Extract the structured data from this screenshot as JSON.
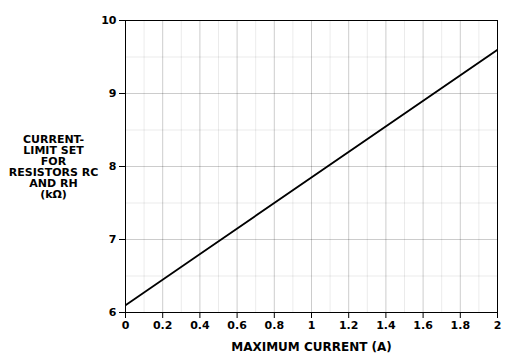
{
  "chart_data": {
    "type": "line",
    "xlabel": "MAXIMUM CURRENT (A)",
    "ylabel": [
      "CURRENT-",
      "LIMIT SET",
      "FOR",
      "RESISTORS RC",
      "AND RH",
      "(kΩ)"
    ],
    "x": [
      0,
      2
    ],
    "values": [
      6.1,
      9.6
    ],
    "color": "#000000",
    "xlim": [
      0,
      2
    ],
    "ylim": [
      6,
      10
    ],
    "xticks": [
      0,
      0.2,
      0.4,
      0.6,
      0.8,
      1.0,
      1.2,
      1.4,
      1.6,
      1.8,
      2.0
    ],
    "yticks": [
      6,
      7,
      8,
      9,
      10
    ],
    "grid": true
  }
}
